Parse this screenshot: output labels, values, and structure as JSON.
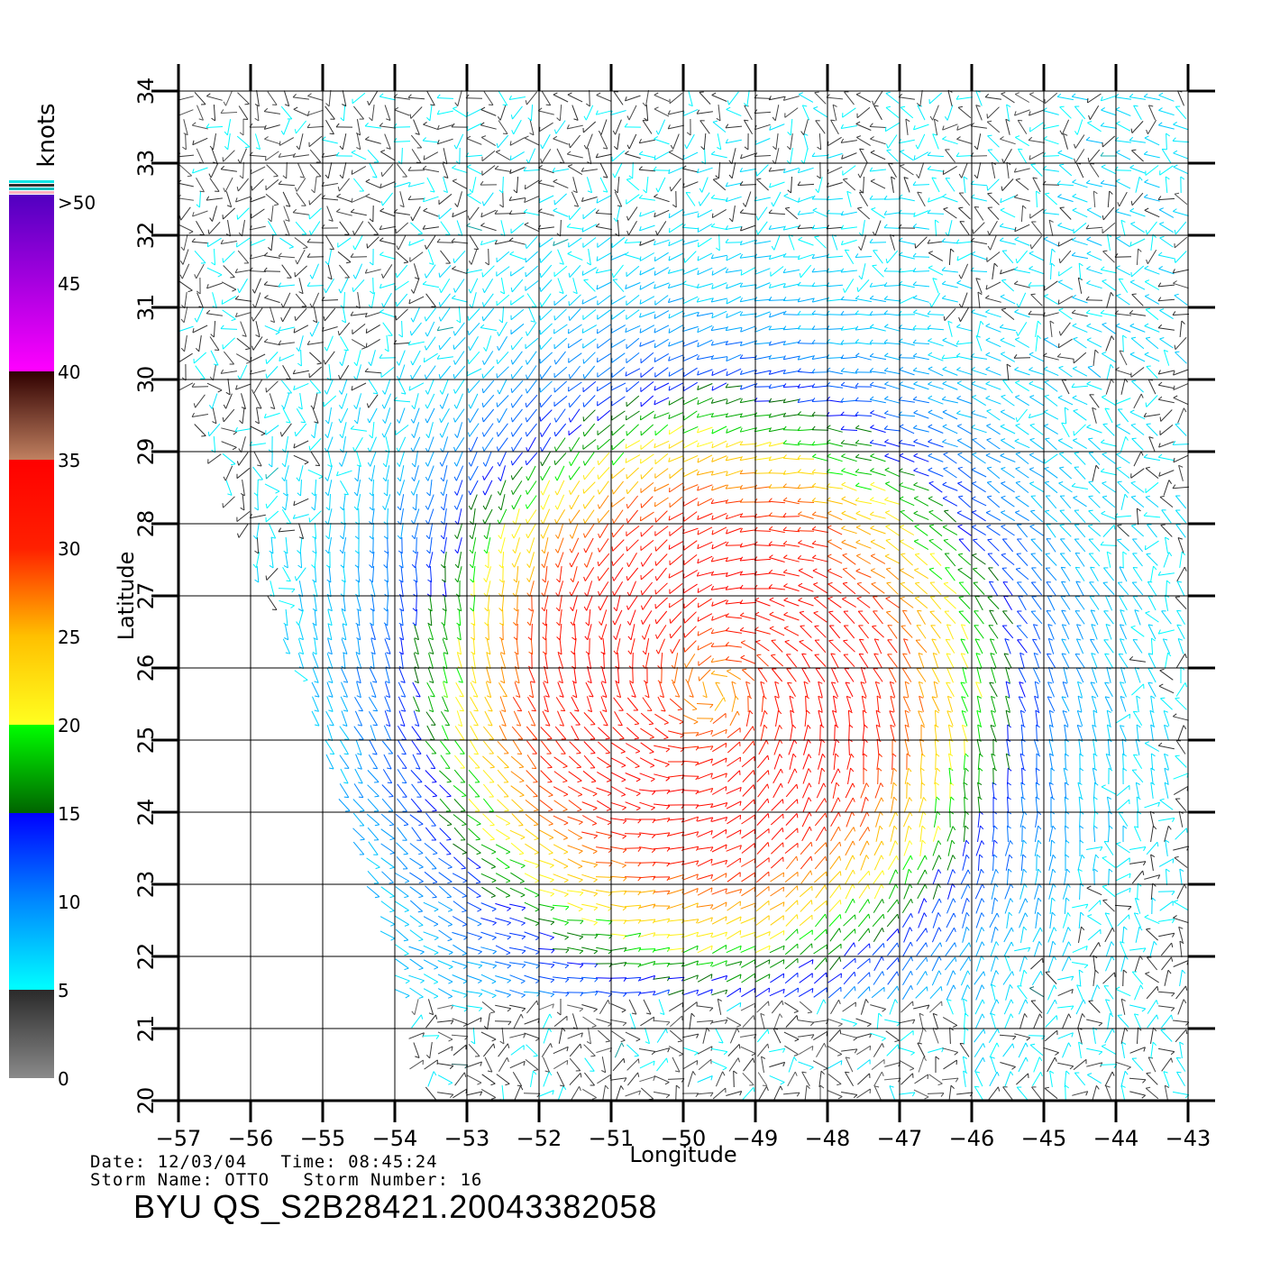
{
  "map": {
    "xlabel": "Longitude",
    "ylabel": "Latitude",
    "lon_range": [
      -57,
      -43
    ],
    "lat_range": [
      20,
      34
    ],
    "lon_ticks": [
      -57,
      -56,
      -55,
      -54,
      -53,
      -52,
      -51,
      -50,
      -49,
      -48,
      -47,
      -46,
      -45,
      -44,
      -43
    ],
    "lat_ticks": [
      20,
      21,
      22,
      23,
      24,
      25,
      26,
      27,
      28,
      29,
      30,
      31,
      32,
      33,
      34
    ],
    "grid": true,
    "swath_west_edge": [
      [
        -57,
        30
      ],
      [
        -55,
        25
      ],
      [
        -53.9,
        21.5
      ],
      [
        -53.6,
        20
      ]
    ],
    "wind_center": [
      -49.6,
      25.7
    ]
  },
  "colorbar": {
    "unit_label": "knots",
    "labels": [
      ">50",
      "45",
      "40",
      "35",
      "30",
      "25",
      "20",
      "15",
      "10",
      "5",
      "0"
    ],
    "stops": [
      {
        "value": 0,
        "color": "#8a8a8a"
      },
      {
        "value": 5,
        "color": "#2a2a2a"
      },
      {
        "value": 5.01,
        "color": "#00ffff"
      },
      {
        "value": 10,
        "color": "#0088ff"
      },
      {
        "value": 15,
        "color": "#0000ff"
      },
      {
        "value": 15.01,
        "color": "#006400"
      },
      {
        "value": 20,
        "color": "#00ff00"
      },
      {
        "value": 20.01,
        "color": "#ffff20"
      },
      {
        "value": 25,
        "color": "#ffc000"
      },
      {
        "value": 30,
        "color": "#ff2000"
      },
      {
        "value": 35,
        "color": "#ff0000"
      },
      {
        "value": 35.01,
        "color": "#c08060"
      },
      {
        "value": 40,
        "color": "#300000"
      },
      {
        "value": 40.01,
        "color": "#ff00ff"
      },
      {
        "value": 50,
        "color": "#5000c0"
      }
    ]
  },
  "info": {
    "line1": "Date: 12/03/04   Time: 08:45:24",
    "line2": "Storm Name: OTTO   Storm Number: 16",
    "product": "BYU QS_S2B28421.20043382058"
  }
}
